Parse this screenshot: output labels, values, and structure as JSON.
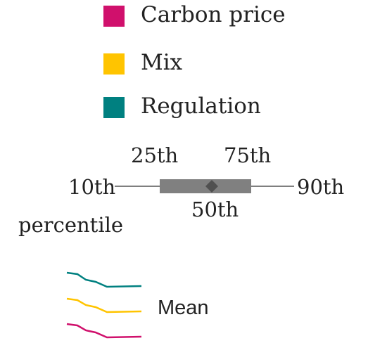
{
  "legend": {
    "items": [
      {
        "label": "Carbon price",
        "color": "#d0106c"
      },
      {
        "label": "Mix",
        "color": "#ffc400"
      },
      {
        "label": "Regulation",
        "color": "#008080"
      }
    ]
  },
  "boxplot_key": {
    "label_10th": "10th",
    "label_25th": "25th",
    "label_50th": "50th",
    "label_75th": "75th",
    "label_90th": "90th",
    "label_percentile": "percentile",
    "box_color": "#808080",
    "median_marker_color": "#505050",
    "whisker_color": "#555555"
  },
  "mean_key": {
    "label": "Mean",
    "line_colors": [
      "#008080",
      "#ffc400",
      "#d0106c"
    ]
  }
}
